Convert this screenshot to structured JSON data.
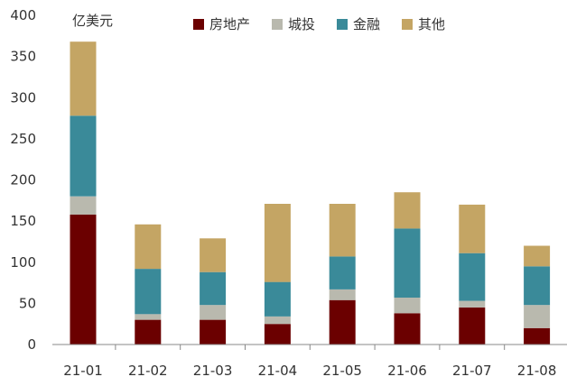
{
  "chart_data": {
    "type": "bar",
    "stacked": true,
    "unit_label": "亿美元",
    "categories": [
      "21-01",
      "21-02",
      "21-03",
      "21-04",
      "21-05",
      "21-06",
      "21-07",
      "21-08"
    ],
    "series": [
      {
        "name": "房地产",
        "color": "#6B0000",
        "values": [
          158,
          30,
          30,
          25,
          54,
          38,
          45,
          20
        ]
      },
      {
        "name": "城投",
        "color": "#B9B9AE",
        "values": [
          22,
          7,
          18,
          9,
          13,
          19,
          8,
          28
        ]
      },
      {
        "name": "金融",
        "color": "#3A8A99",
        "values": [
          98,
          55,
          40,
          42,
          40,
          84,
          58,
          47
        ]
      },
      {
        "name": "其他",
        "color": "#C4A564",
        "values": [
          90,
          54,
          41,
          95,
          64,
          44,
          59,
          25
        ]
      }
    ],
    "yticks": [
      0,
      50,
      100,
      150,
      200,
      250,
      300,
      350,
      400
    ],
    "ylim": [
      0,
      400
    ]
  }
}
